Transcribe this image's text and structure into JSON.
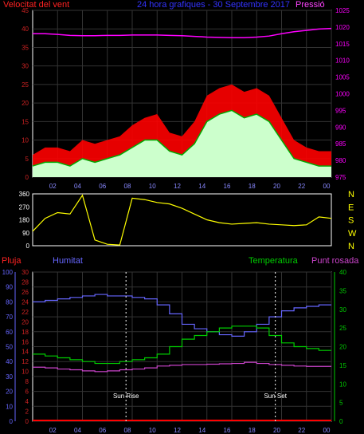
{
  "header": {
    "left_label": "Velocitat del vent",
    "center_title": "24 hora grafiques - 30 Septembre 2017",
    "right_label": "Pressió"
  },
  "colors": {
    "wind_gust": "#ff0000",
    "wind_avg": "#00aa00",
    "wind_fill": "#ccffcc",
    "pressure": "#ff00ff",
    "direction": "#ffff00",
    "humidity": "#6666ff",
    "temperature": "#00cc00",
    "dewpoint": "#cc44cc",
    "rain": "#ff0000",
    "axis_red": "#cc2222",
    "axis_blue": "#6666ff",
    "axis_green": "#00cc00"
  },
  "chart_data": [
    {
      "type": "line",
      "title": "24 hora grafiques - 30 Septembre 2017",
      "x_ticks": [
        "02",
        "04",
        "06",
        "08",
        "10",
        "12",
        "14",
        "16",
        "18",
        "20",
        "22",
        "00"
      ],
      "x": [
        0,
        1,
        2,
        3,
        4,
        5,
        6,
        7,
        8,
        9,
        10,
        11,
        12,
        13,
        14,
        15,
        16,
        17,
        18,
        19,
        20,
        21,
        22,
        23,
        24
      ],
      "ylim_left": [
        0,
        45
      ],
      "y_ticks_left": [
        "0",
        "5",
        "10",
        "15",
        "20",
        "25",
        "30",
        "35",
        "40",
        "45"
      ],
      "ylim_right": [
        975,
        1025
      ],
      "y_ticks_right": [
        "975",
        "980",
        "985",
        "990",
        "995",
        "1000",
        "1005",
        "1010",
        "1015",
        "1020",
        "1025"
      ],
      "series": [
        {
          "name": "Velocitat del vent",
          "axis": "left",
          "values": [
            6,
            8,
            8,
            7,
            10,
            9,
            10,
            11,
            14,
            16,
            17,
            12,
            11,
            15,
            22,
            24,
            25,
            23,
            24,
            22,
            16,
            10,
            8,
            7,
            7
          ]
        },
        {
          "name": "wind_avg",
          "axis": "left",
          "values": [
            3,
            4,
            4,
            3,
            5,
            4,
            5,
            6,
            8,
            10,
            10,
            7,
            6,
            9,
            15,
            17,
            18,
            16,
            17,
            15,
            10,
            5,
            4,
            3,
            3
          ]
        },
        {
          "name": "Pressió",
          "axis": "right",
          "values": [
            1018,
            1018,
            1017.8,
            1017.5,
            1017.4,
            1017.4,
            1017.5,
            1017.5,
            1017.6,
            1017.6,
            1017.6,
            1017.5,
            1017.4,
            1017.2,
            1017,
            1016.9,
            1016.8,
            1016.8,
            1017,
            1017.3,
            1018,
            1018.6,
            1019,
            1019.4,
            1019.6
          ]
        }
      ]
    },
    {
      "type": "line",
      "ylim": [
        0,
        360
      ],
      "y_ticks": [
        "0",
        "90",
        "180",
        "270",
        "360"
      ],
      "right_labels": [
        "N",
        "W",
        "S",
        "E",
        "N"
      ],
      "series": [
        {
          "name": "wind_direction",
          "values": [
            100,
            190,
            230,
            220,
            350,
            40,
            10,
            5,
            330,
            320,
            300,
            290,
            260,
            220,
            180,
            160,
            150,
            155,
            160,
            150,
            145,
            140,
            145,
            200,
            190
          ]
        }
      ]
    },
    {
      "type": "line",
      "legend": [
        "Pluja",
        "Humitat",
        "Temperatura",
        "Punt rosada"
      ],
      "ylim_rain": [
        0,
        30
      ],
      "y_ticks_rain": [
        "0",
        "2",
        "4",
        "6",
        "8",
        "10",
        "12",
        "14",
        "16",
        "18",
        "20",
        "22",
        "24",
        "26",
        "28",
        "30"
      ],
      "ylim_humidity": [
        0,
        100
      ],
      "y_ticks_humidity": [
        "0",
        "10",
        "20",
        "30",
        "40",
        "50",
        "60",
        "70",
        "80",
        "90",
        "100"
      ],
      "ylim_temperature": [
        0,
        40
      ],
      "y_ticks_temperature": [
        "0",
        "5",
        "10",
        "15",
        "20",
        "25",
        "30",
        "35",
        "40"
      ],
      "annotations": [
        "Sun Rise",
        "Sun Set"
      ],
      "series": [
        {
          "name": "Humitat",
          "values": [
            80,
            81,
            82,
            83,
            84,
            85,
            84,
            84,
            83,
            82,
            78,
            72,
            65,
            62,
            60,
            58,
            57,
            60,
            65,
            70,
            74,
            76,
            77,
            78,
            78
          ]
        },
        {
          "name": "Temperatura",
          "values": [
            18,
            17.5,
            17,
            16.5,
            16,
            15.5,
            15.5,
            16,
            16.5,
            17,
            18,
            20,
            22,
            23,
            24,
            25,
            25.5,
            25.5,
            25,
            23,
            21,
            20,
            19.5,
            19,
            19
          ]
        },
        {
          "name": "Punt rosada",
          "values": [
            14.5,
            14.3,
            14,
            13.8,
            13.5,
            13.3,
            13.5,
            13.8,
            14,
            14.3,
            14.8,
            15,
            15.2,
            15.2,
            15.3,
            15.4,
            15.5,
            15.8,
            15.5,
            15.2,
            15,
            14.8,
            14.7,
            14.7,
            14.7
          ]
        },
        {
          "name": "Pluja",
          "values": [
            0,
            0,
            0,
            0,
            0,
            0,
            0,
            0,
            0,
            0,
            0,
            0,
            0,
            0,
            0,
            0,
            0,
            0,
            0,
            0,
            0,
            0,
            0,
            0,
            0
          ]
        }
      ]
    }
  ]
}
